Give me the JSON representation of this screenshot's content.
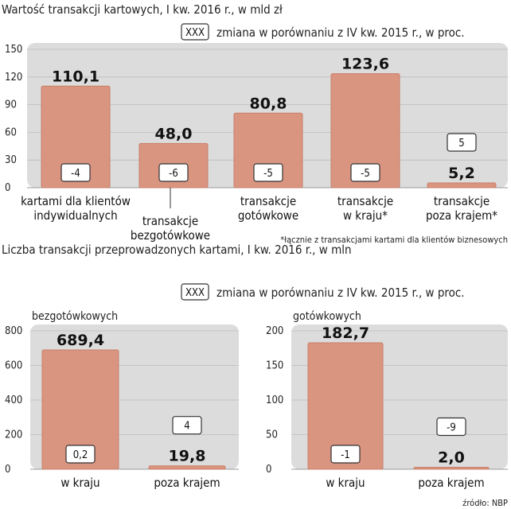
{
  "chart1": {
    "title": "Wartość transakcji kartowych, I kw. 2016 r., w mld zł",
    "legend_box": "XXX",
    "legend_text": "zmiana w porównaniu z IV kw. 2015 r., w proc.",
    "footnote": "*łącznie z transakcjami kartami dla klientów biznesowych",
    "labels": [
      [
        "kartami dla klientów",
        "indywidualnych"
      ],
      [
        "transakcje",
        "bezgotówkowe"
      ],
      [
        "transakcje",
        "gotówkowe"
      ],
      [
        "transakcje",
        "w kraju*"
      ],
      [
        "transakcje",
        "poza krajem*"
      ]
    ]
  },
  "chart2": {
    "title": "Liczba transakcji przeprowadzonych kartami, I kw. 2016 r., w mln",
    "legend_box": "XXX",
    "legend_text": "zmiana w porównaniu z IV kw. 2015 r., w proc.",
    "source": "źródło: NBP"
  },
  "colors": {
    "bar": "#d99580",
    "bar_edge": "#c97e68",
    "panel": "#dcdcdc",
    "grid": "#bdbdbd"
  },
  "chart_data": [
    {
      "type": "bar",
      "title": "Wartość transakcji kartowych, I kw. 2016 r., w mld zł",
      "categories": [
        "kartami dla klientów indywidualnych",
        "transakcje bezgotówkowe",
        "transakcje gotówkowe",
        "transakcje w kraju*",
        "transakcje poza krajem*"
      ],
      "values": [
        110.1,
        48.0,
        80.8,
        123.6,
        5.2
      ],
      "value_labels": [
        "110,1",
        "48,0",
        "80,8",
        "123,6",
        "5,2"
      ],
      "change_labels": [
        "-4",
        "-6",
        "-5",
        "-5",
        "5"
      ],
      "ylim": [
        0,
        150
      ],
      "yticks": [
        0,
        30,
        60,
        90,
        120,
        150
      ],
      "grid": true
    },
    {
      "type": "bar",
      "title": "bezgotówkowych",
      "categories": [
        "w kraju",
        "poza krajem"
      ],
      "values": [
        689.4,
        19.8
      ],
      "value_labels": [
        "689,4",
        "19,8"
      ],
      "change_labels": [
        "0,2",
        "4"
      ],
      "ylim": [
        0,
        800
      ],
      "yticks": [
        0,
        200,
        400,
        600,
        800
      ],
      "grid": true
    },
    {
      "type": "bar",
      "title": "gotówkowych",
      "categories": [
        "w kraju",
        "poza krajem"
      ],
      "values": [
        182.7,
        2.0
      ],
      "value_labels": [
        "182,7",
        "2,0"
      ],
      "change_labels": [
        "-1",
        "-9"
      ],
      "ylim": [
        0,
        200
      ],
      "yticks": [
        0,
        50,
        100,
        150,
        200
      ],
      "grid": true
    }
  ]
}
